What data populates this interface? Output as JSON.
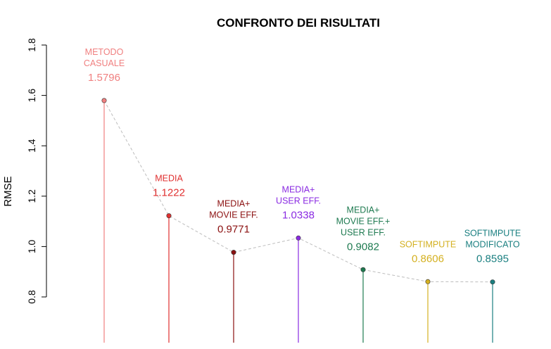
{
  "chart_data": {
    "type": "scatter",
    "title": "CONFRONTO DEI RISULTATI",
    "xlabel": "",
    "ylabel": "RMSE",
    "ylim": [
      0.78,
      1.83
    ],
    "yticks": [
      "0.8",
      "1.0",
      "1.2",
      "1.4",
      "1.6",
      "1.8"
    ],
    "grid": false,
    "connector": "dashed-gray",
    "points": [
      {
        "label_lines": [
          "METODO",
          "CASUALE"
        ],
        "value": 1.5796,
        "value_label": "1.5796",
        "color": "#f08080"
      },
      {
        "label_lines": [
          "MEDIA"
        ],
        "value": 1.1222,
        "value_label": "1.1222",
        "color": "#e03030"
      },
      {
        "label_lines": [
          "MEDIA+",
          "MOVIE EFF."
        ],
        "value": 0.9771,
        "value_label": "0.9771",
        "color": "#8b1010"
      },
      {
        "label_lines": [
          "MEDIA+",
          "USER EFF."
        ],
        "value": 1.0338,
        "value_label": "1.0338",
        "color": "#8a2be2"
      },
      {
        "label_lines": [
          "MEDIA+",
          "MOVIE EFF.+",
          "USER EFF."
        ],
        "value": 0.9082,
        "value_label": "0.9082",
        "color": "#1e7a50"
      },
      {
        "label_lines": [
          "SOFTIMPUTE"
        ],
        "value": 0.8606,
        "value_label": "0.8606",
        "color": "#d4b020"
      },
      {
        "label_lines": [
          "SOFTIMPUTE",
          "MODIFICATO"
        ],
        "value": 0.8595,
        "value_label": "0.8595",
        "color": "#1a7f80"
      }
    ]
  }
}
